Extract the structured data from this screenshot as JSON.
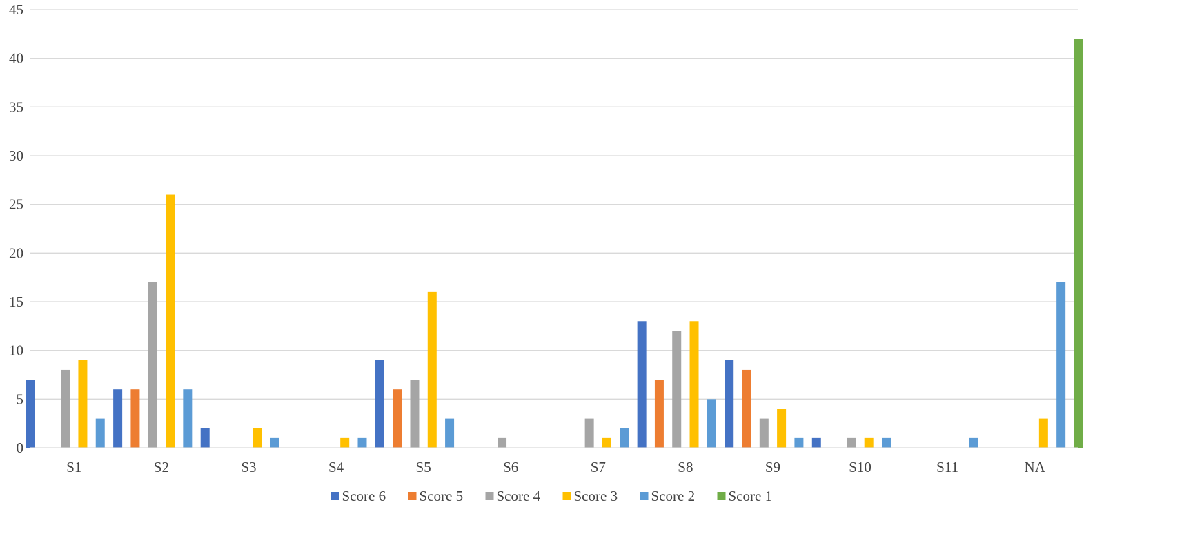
{
  "chart_data": {
    "type": "bar",
    "title": "",
    "xlabel": "",
    "ylabel": "",
    "ylim": [
      0,
      45
    ],
    "yticks": [
      0,
      5,
      10,
      15,
      20,
      25,
      30,
      35,
      40,
      45
    ],
    "grid": true,
    "legend_position": "bottom",
    "categories": [
      "S1",
      "S2",
      "S3",
      "S4",
      "S5",
      "S6",
      "S7",
      "S8",
      "S9",
      "S10",
      "S11",
      "NA"
    ],
    "series": [
      {
        "name": "Score 6",
        "color": "#4472C4",
        "values": [
          7,
          6,
          2,
          0,
          9,
          0,
          0,
          13,
          9,
          1,
          0,
          0
        ]
      },
      {
        "name": "Score 5",
        "color": "#ED7D31",
        "values": [
          0,
          6,
          0,
          0,
          6,
          0,
          0,
          7,
          8,
          0,
          0,
          0
        ]
      },
      {
        "name": "Score 4",
        "color": "#A5A5A5",
        "values": [
          8,
          17,
          0,
          0,
          7,
          1,
          3,
          12,
          3,
          1,
          0,
          0
        ]
      },
      {
        "name": "Score 3",
        "color": "#FFC000",
        "values": [
          9,
          26,
          2,
          1,
          16,
          0,
          1,
          13,
          4,
          1,
          0,
          3
        ]
      },
      {
        "name": "Score 2",
        "color": "#5B9BD5",
        "values": [
          3,
          6,
          1,
          1,
          3,
          0,
          2,
          5,
          1,
          1,
          1,
          17
        ]
      },
      {
        "name": "Score 1",
        "color": "#70AD47",
        "values": [
          0,
          0,
          0,
          0,
          0,
          0,
          0,
          0,
          0,
          0,
          0,
          42
        ]
      }
    ]
  }
}
